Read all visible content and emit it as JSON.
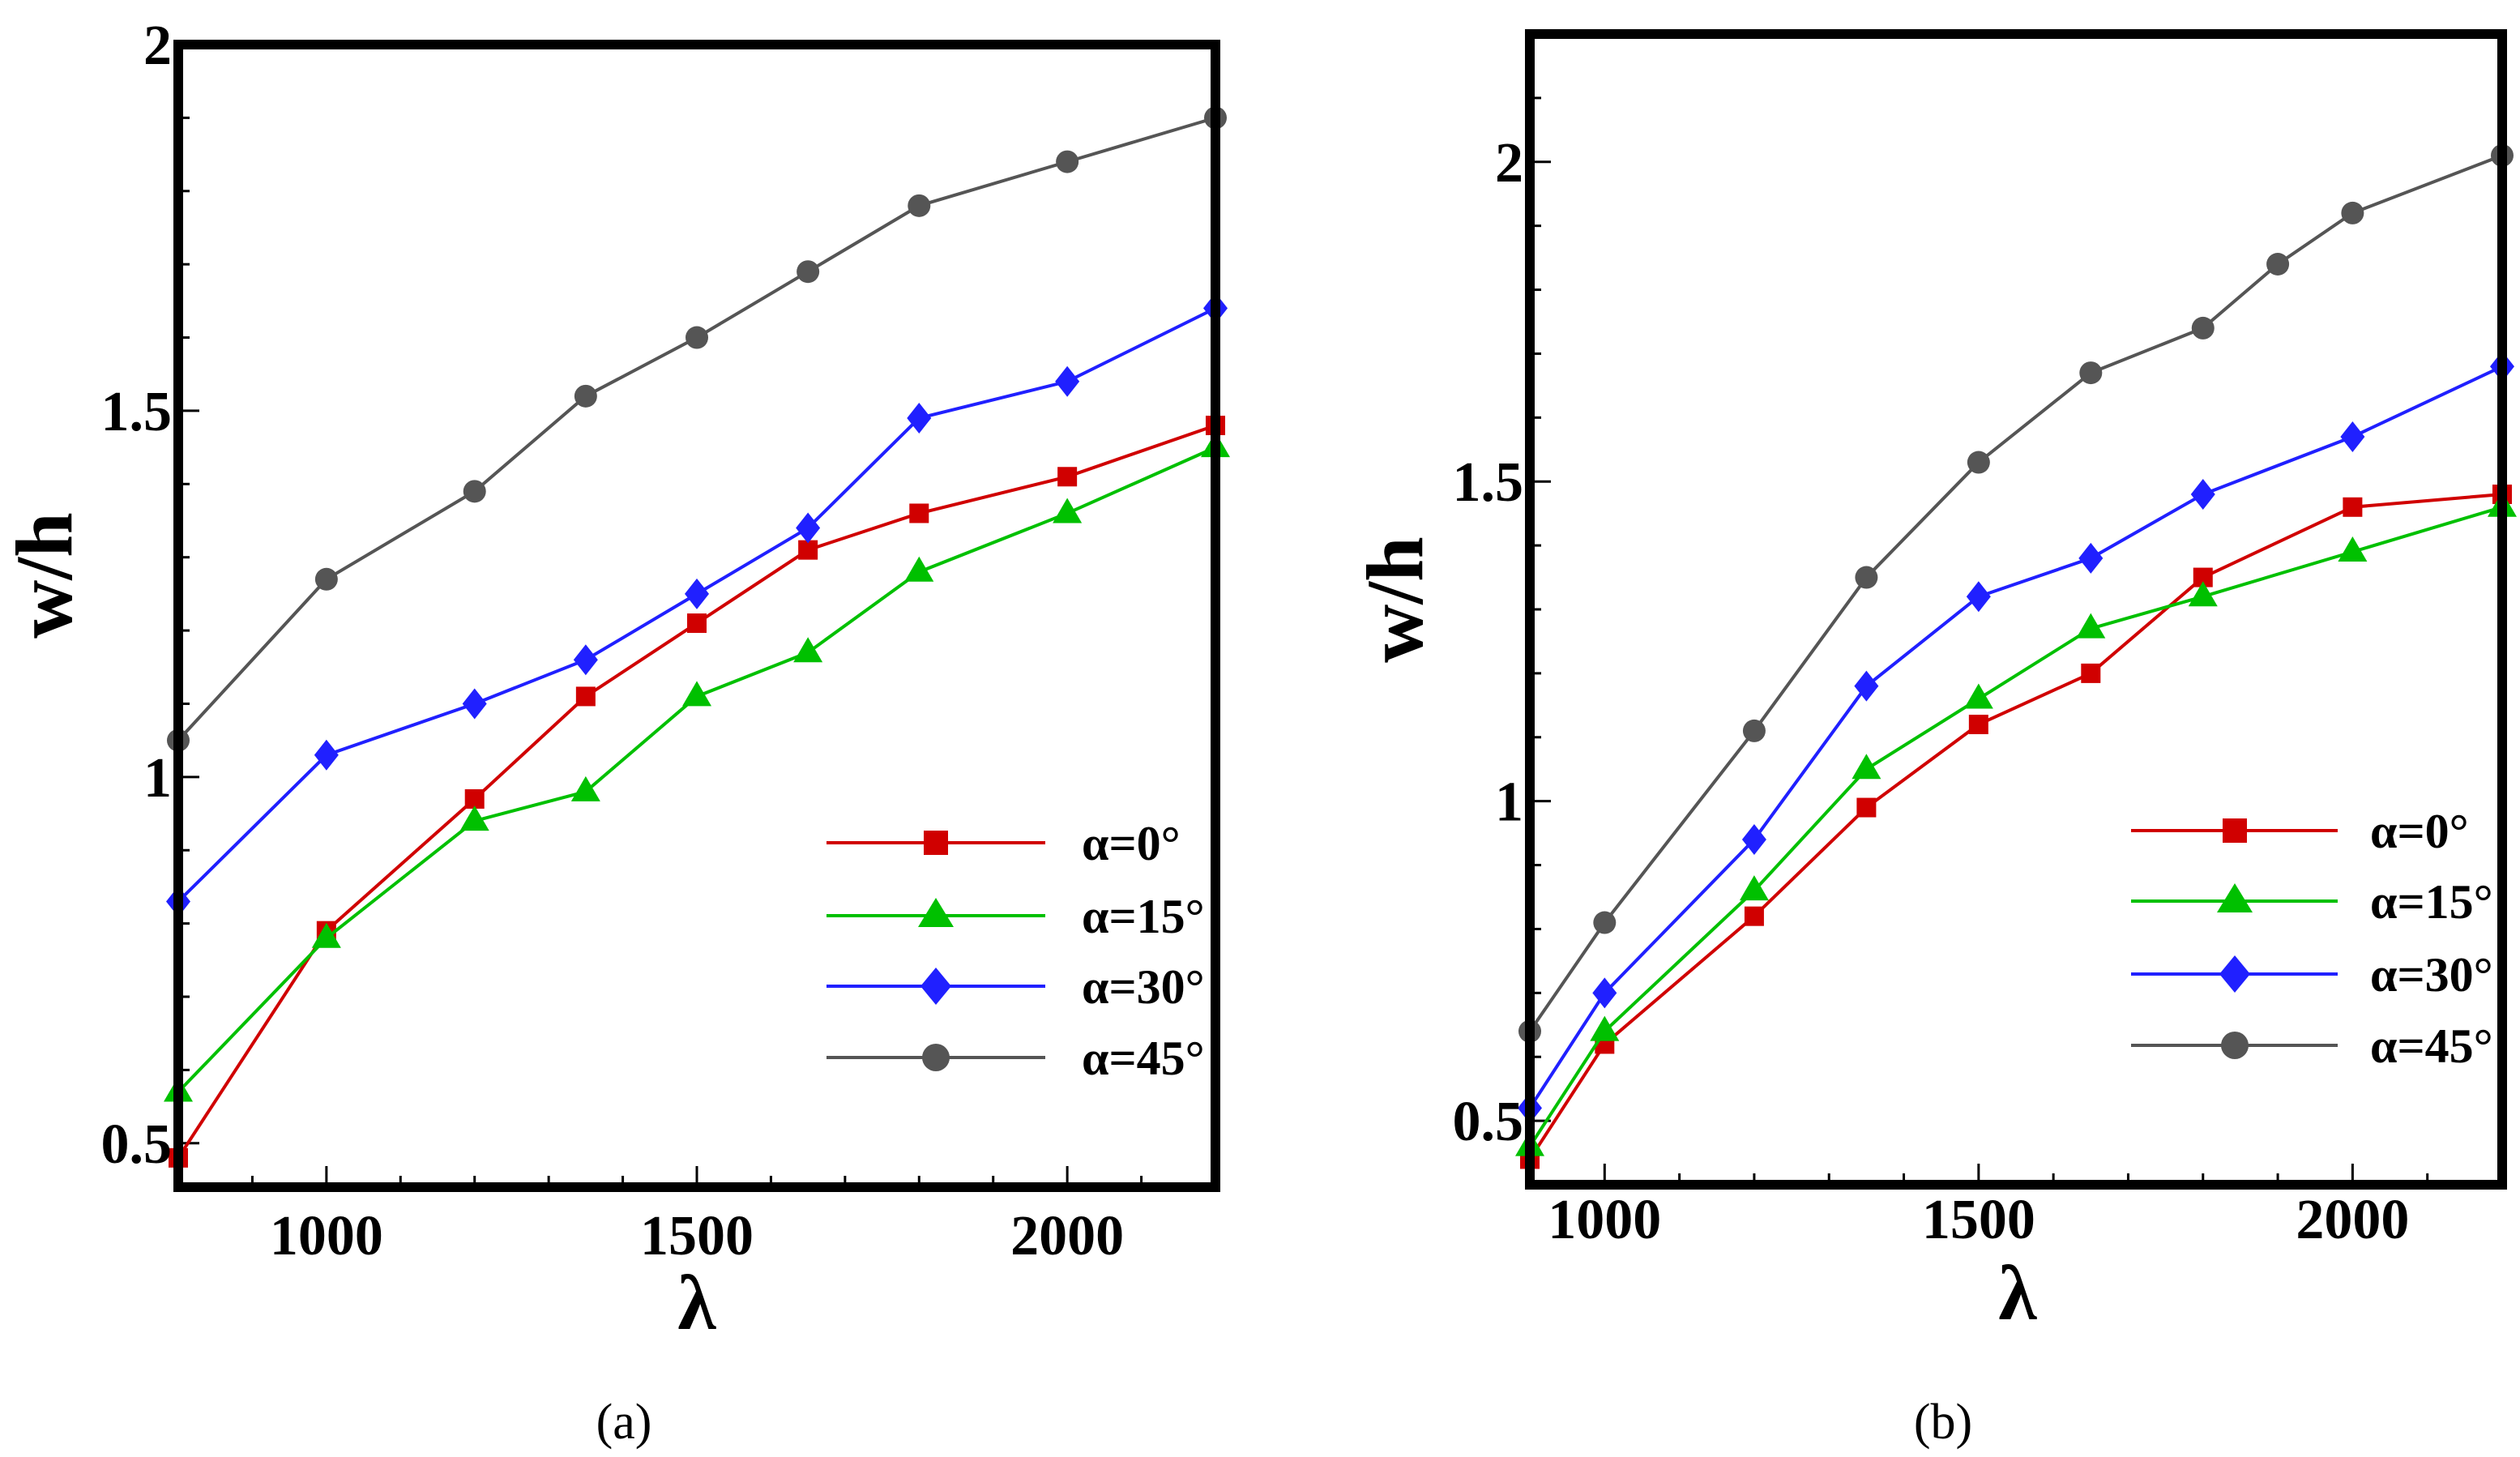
{
  "chart_data": [
    {
      "type": "line",
      "caption": "(a)",
      "xlabel": "λ",
      "ylabel": "w/h",
      "xlim": [
        800,
        2200
      ],
      "ylim": [
        0.44,
        2.0
      ],
      "xticks": [
        1000,
        1500,
        2000
      ],
      "xtick_labels": [
        "1000",
        "1500",
        "2000"
      ],
      "yticks": [
        0.5,
        1,
        1.5,
        2
      ],
      "ytick_labels": [
        "0.5",
        "1",
        "1.5",
        "2"
      ],
      "legend_position": "lower-right",
      "series": [
        {
          "name": "α=0°",
          "color": "#d00000",
          "marker": "square",
          "x": [
            800,
            1000,
            1200,
            1350,
            1500,
            1650,
            1800,
            2000,
            2200
          ],
          "y": [
            0.48,
            0.79,
            0.97,
            1.11,
            1.21,
            1.31,
            1.36,
            1.41,
            1.48
          ]
        },
        {
          "name": "α=15°",
          "color": "#00c000",
          "marker": "triangle",
          "x": [
            800,
            1000,
            1200,
            1350,
            1500,
            1650,
            1800,
            2000,
            2200
          ],
          "y": [
            0.57,
            0.78,
            0.94,
            0.98,
            1.11,
            1.17,
            1.28,
            1.36,
            1.45
          ]
        },
        {
          "name": "α=30°",
          "color": "#2020ff",
          "marker": "diamond",
          "x": [
            800,
            1000,
            1200,
            1350,
            1500,
            1650,
            1800,
            2000,
            2200
          ],
          "y": [
            0.83,
            1.03,
            1.1,
            1.16,
            1.25,
            1.34,
            1.49,
            1.54,
            1.64
          ]
        },
        {
          "name": "α=45°",
          "color": "#555555",
          "marker": "circle",
          "x": [
            800,
            1000,
            1200,
            1350,
            1500,
            1650,
            1800,
            2000,
            2200
          ],
          "y": [
            1.05,
            1.27,
            1.39,
            1.52,
            1.6,
            1.69,
            1.78,
            1.84,
            1.9
          ]
        }
      ]
    },
    {
      "type": "line",
      "caption": "(b)",
      "xlabel": "λ",
      "ylabel": "w/h",
      "xlim": [
        900,
        2200
      ],
      "ylim": [
        0.4,
        2.2
      ],
      "xticks": [
        1000,
        1500,
        2000
      ],
      "xtick_labels": [
        "1000",
        "1500",
        "2000"
      ],
      "yticks": [
        0.5,
        1,
        1.5,
        2
      ],
      "ytick_labels": [
        "0.5",
        "1",
        "1.5",
        "2"
      ],
      "legend_position": "lower-right",
      "series": [
        {
          "name": "α=0°",
          "color": "#d00000",
          "marker": "square",
          "x": [
            900,
            1000,
            1200,
            1350,
            1500,
            1650,
            1800,
            2000,
            2200
          ],
          "y": [
            0.44,
            0.62,
            0.82,
            0.99,
            1.12,
            1.2,
            1.35,
            1.46,
            1.48
          ]
        },
        {
          "name": "α=15°",
          "color": "#00c000",
          "marker": "triangle",
          "x": [
            900,
            1000,
            1200,
            1350,
            1500,
            1650,
            1800,
            2000,
            2200
          ],
          "y": [
            0.46,
            0.64,
            0.86,
            1.05,
            1.16,
            1.27,
            1.32,
            1.39,
            1.46
          ]
        },
        {
          "name": "α=30°",
          "color": "#2020ff",
          "marker": "diamond",
          "x": [
            900,
            1000,
            1200,
            1350,
            1500,
            1650,
            1800,
            2000,
            2200
          ],
          "y": [
            0.52,
            0.7,
            0.94,
            1.18,
            1.32,
            1.38,
            1.48,
            1.57,
            1.68
          ]
        },
        {
          "name": "α=45°",
          "color": "#555555",
          "marker": "circle",
          "x": [
            900,
            1000,
            1200,
            1350,
            1500,
            1650,
            1800,
            1900,
            2000,
            2200
          ],
          "y": [
            0.64,
            0.81,
            1.11,
            1.35,
            1.53,
            1.67,
            1.74,
            1.84,
            1.92,
            2.01
          ]
        }
      ]
    }
  ]
}
